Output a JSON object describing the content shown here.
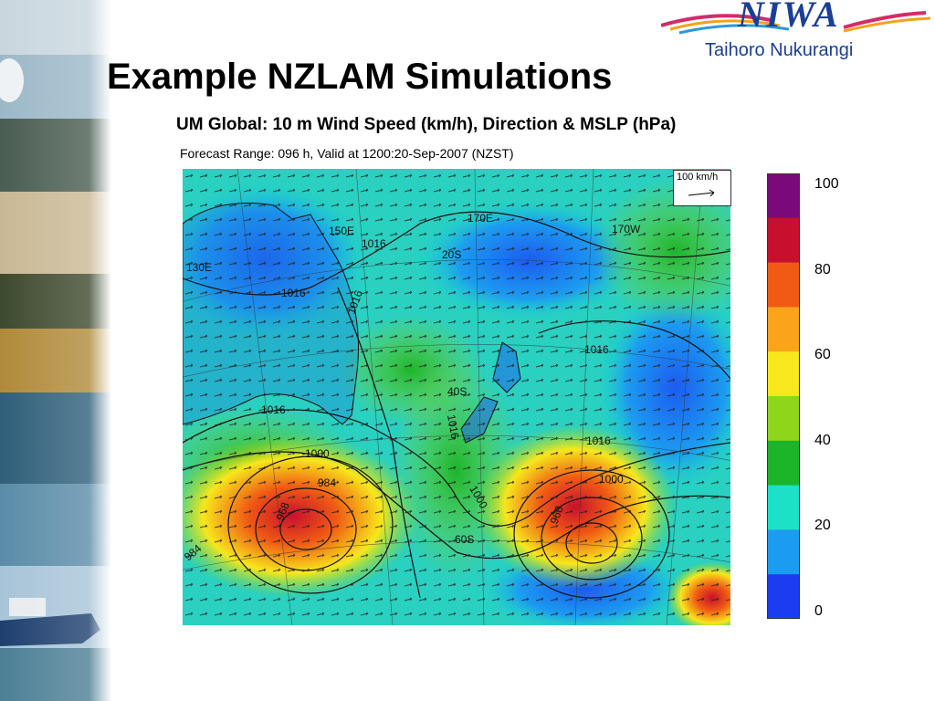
{
  "slide": {
    "title": "Example NZLAM Simulations"
  },
  "logo": {
    "wordmark": "NIWA",
    "subtitle": "Taihoro Nukurangi"
  },
  "figure": {
    "title": "UM Global: 10 m Wind Speed (km/h), Direction & MSLP (hPa)",
    "subtitle": "Forecast Range: 096 h, Valid at 1200:20-Sep-2007  (NZST)",
    "scale_arrow_label": "100 km/h",
    "colorbar": {
      "ticks": [
        "100",
        "80",
        "60",
        "40",
        "20",
        "0"
      ],
      "colors": [
        "#7a0a7a",
        "#c8102e",
        "#f05a14",
        "#fca31c",
        "#f7e71c",
        "#8ed61c",
        "#1cb42a",
        "#1ce0c8",
        "#1c9cf0",
        "#1c3cf0"
      ]
    },
    "map_labels": {
      "lon_150e": "150E",
      "lon_170e": "170E",
      "lon_170w": "170W",
      "lon_130e": "130E",
      "lat_20s": "20S",
      "lat_40s": "40S",
      "lat_60s": "60S",
      "isobar_1016_a": "1016",
      "isobar_1016_b": "1016",
      "isobar_1016_c": "1016",
      "isobar_1016_d": "1016",
      "isobar_1016_e": "1016",
      "isobar_1016_f": "1016",
      "isobar_1016_g": "1016",
      "isobar_1000_a": "1000",
      "isobar_1000_b": "1000",
      "isobar_1000_c": "1000",
      "isobar_984": "984",
      "isobar_968_a": "968",
      "isobar_968_b": "968",
      "isobar_984_b": "984"
    }
  }
}
